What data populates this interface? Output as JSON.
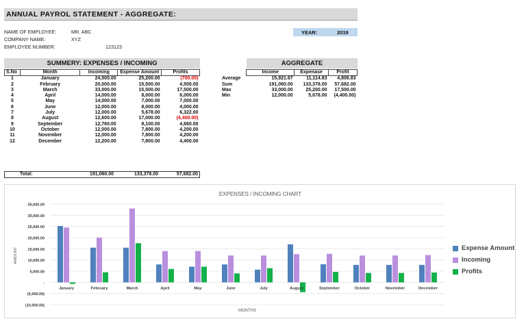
{
  "header": {
    "title": "ANNUAL PAYROL STATEMENT - AGGREGATE:"
  },
  "info": {
    "name_label": "NAME OF EMPLOYEE:",
    "name_value": "MR. ABC",
    "company_label": "COMPANY NAME:",
    "company_value": "XYZ",
    "number_label": "EMPLOYEE NUMBER:",
    "number_value": "123123"
  },
  "year": {
    "label": "YEAR:",
    "value": "2019"
  },
  "summary": {
    "title": "SUMMERY: EXPENSES / INCOMING",
    "headers": [
      "S.No",
      "Month",
      "Incoming",
      "Expense Amount",
      "Profits"
    ],
    "rows": [
      {
        "sno": "1",
        "month": "January",
        "incoming": "24,500.00",
        "expense": "25,200.00",
        "profit": "(700.00)",
        "neg": true
      },
      {
        "sno": "2",
        "month": "February",
        "incoming": "20,000.00",
        "expense": "15,500.00",
        "profit": "4,500.00",
        "neg": false
      },
      {
        "sno": "3",
        "month": "March",
        "incoming": "33,000.00",
        "expense": "15,500.00",
        "profit": "17,500.00",
        "neg": false
      },
      {
        "sno": "4",
        "month": "April",
        "incoming": "14,000.00",
        "expense": "8,000.00",
        "profit": "6,000.00",
        "neg": false
      },
      {
        "sno": "5",
        "month": "May",
        "incoming": "14,000.00",
        "expense": "7,000.00",
        "profit": "7,000.00",
        "neg": false
      },
      {
        "sno": "6",
        "month": "June",
        "incoming": "12,000.00",
        "expense": "8,000.00",
        "profit": "4,000.00",
        "neg": false
      },
      {
        "sno": "7",
        "month": "July",
        "incoming": "12,000.00",
        "expense": "5,678.00",
        "profit": "6,322.00",
        "neg": false
      },
      {
        "sno": "8",
        "month": "August",
        "incoming": "12,600.00",
        "expense": "17,000.00",
        "profit": "(4,400.00)",
        "neg": true
      },
      {
        "sno": "9",
        "month": "September",
        "incoming": "12,760.00",
        "expense": "8,100.00",
        "profit": "4,660.00",
        "neg": false
      },
      {
        "sno": "10",
        "month": "October",
        "incoming": "12,000.00",
        "expense": "7,800.00",
        "profit": "4,200.00",
        "neg": false
      },
      {
        "sno": "11",
        "month": "November",
        "incoming": "12,000.00",
        "expense": "7,800.00",
        "profit": "4,200.00",
        "neg": false
      },
      {
        "sno": "12",
        "month": "December",
        "incoming": "12,200.00",
        "expense": "7,800.00",
        "profit": "4,400.00",
        "neg": false
      }
    ],
    "total_label": "Total:",
    "total_incoming": "191,060.00",
    "total_expense": "133,378.00",
    "total_profit": "57,682.00"
  },
  "aggregate": {
    "title": "AGGREGATE",
    "headers": [
      "Income",
      "Expenase",
      "Profit"
    ],
    "rows": [
      {
        "label": "Average",
        "income": "15,921.67",
        "expense": "11,114.83",
        "profit": "4,806.83"
      },
      {
        "label": "Sum",
        "income": "191,060.00",
        "expense": "133,378.00",
        "profit": "57,682.00"
      },
      {
        "label": "Max",
        "income": "33,000.00",
        "expense": "25,200.00",
        "profit": "17,500.00"
      },
      {
        "label": "Min",
        "income": "12,000.00",
        "expense": "5,678.00",
        "profit": "(4,400.00)"
      }
    ]
  },
  "chart_data": {
    "type": "bar",
    "title": "EXPENSES / INCOMING CHART",
    "xlabel": "MONTHS",
    "ylabel": "AMOUNT",
    "ylim": [
      -10000,
      35000
    ],
    "yticks": [
      "(10,000.00)",
      "(5,000.00)",
      "-",
      "5,000.00",
      "10,000.00",
      "15,000.00",
      "20,000.00",
      "25,000.00",
      "30,000.00",
      "35,000.00"
    ],
    "categories": [
      "January",
      "February",
      "March",
      "April",
      "May",
      "June",
      "July",
      "August",
      "September",
      "October",
      "November",
      "December"
    ],
    "series": [
      {
        "name": "Expense Amount",
        "color": "#4f81bd",
        "values": [
          25200,
          15500,
          15500,
          8000,
          7000,
          8000,
          5678,
          17000,
          8100,
          7800,
          7800,
          7800
        ]
      },
      {
        "name": "Incoming",
        "color": "#b98fde",
        "values": [
          24500,
          20000,
          33000,
          14000,
          14000,
          12000,
          12000,
          12600,
          12760,
          12000,
          12000,
          12200
        ]
      },
      {
        "name": "Profits",
        "color": "#12b14a",
        "values": [
          -700,
          4500,
          17500,
          6000,
          7000,
          4000,
          6322,
          -4400,
          4660,
          4200,
          4200,
          4400
        ]
      }
    ],
    "legend_position": "right",
    "grid": true
  }
}
